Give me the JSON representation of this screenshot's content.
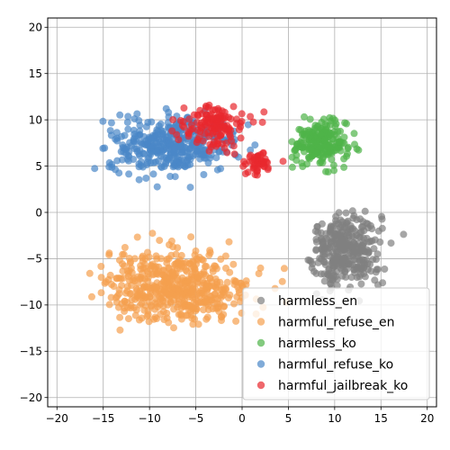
{
  "chart_data": {
    "type": "scatter",
    "title": "",
    "xlabel": "",
    "ylabel": "",
    "xlim": [
      -21,
      21
    ],
    "ylim": [
      -21,
      21
    ],
    "xticks": [
      -20,
      -15,
      -10,
      -5,
      0,
      5,
      10,
      15,
      20
    ],
    "yticks": [
      -20,
      -15,
      -10,
      -5,
      0,
      5,
      10,
      15,
      20
    ],
    "x_tick_labels": [
      "−20",
      "−15",
      "−10",
      "−5",
      "0",
      "5",
      "10",
      "15",
      "20"
    ],
    "y_tick_labels": [
      "−20",
      "−15",
      "−10",
      "−5",
      "0",
      "5",
      "10",
      "15",
      "20"
    ],
    "grid": true,
    "legend_position": "lower-right",
    "series": [
      {
        "name": "harmless_en",
        "color": "#808080",
        "clusters": [
          {
            "center": [
              11,
              -4
            ],
            "spread": [
              2.0,
              2.1
            ],
            "count": 340,
            "xrange": [
              7,
              17.5
            ],
            "yrange": [
              -11,
              1.3
            ]
          }
        ]
      },
      {
        "name": "harmful_refuse_en",
        "color": "#f5a04e",
        "clusters": [
          {
            "center": [
              -7,
              -8
            ],
            "spread": [
              4.0,
              1.9
            ],
            "count": 520,
            "xrange": [
              -16.5,
              5.5
            ],
            "yrange": [
              -12.8,
              -1.0
            ]
          }
        ]
      },
      {
        "name": "harmless_ko",
        "color": "#4fb448",
        "clusters": [
          {
            "center": [
              8.5,
              7.5
            ],
            "spread": [
              1.4,
              1.15
            ],
            "count": 220,
            "xrange": [
              5,
              14
            ],
            "yrange": [
              3.2,
              10.6
            ]
          }
        ]
      },
      {
        "name": "harmful_refuse_ko",
        "color": "#4a88c7",
        "clusters": [
          {
            "center": [
              -7.5,
              7.3
            ],
            "spread": [
              3.4,
              1.5
            ],
            "count": 380,
            "xrange": [
              -17.5,
              3
            ],
            "yrange": [
              2.3,
              12
            ]
          }
        ]
      },
      {
        "name": "harmful_jailbreak_ko",
        "color": "#e8282e",
        "clusters": [
          {
            "center": [
              -3,
              9.3
            ],
            "spread": [
              1.7,
              1.1
            ],
            "count": 140,
            "xrange": [
              -8,
              3
            ],
            "yrange": [
              6,
              12.3
            ]
          },
          {
            "center": [
              1.5,
              5.3
            ],
            "spread": [
              1.1,
              0.7
            ],
            "count": 45,
            "xrange": [
              -1,
              5
            ],
            "yrange": [
              3.5,
              7
            ]
          }
        ]
      }
    ],
    "legend": [
      "harmless_en",
      "harmful_refuse_en",
      "harmless_ko",
      "harmful_refuse_ko",
      "harmful_jailbreak_ko"
    ]
  }
}
